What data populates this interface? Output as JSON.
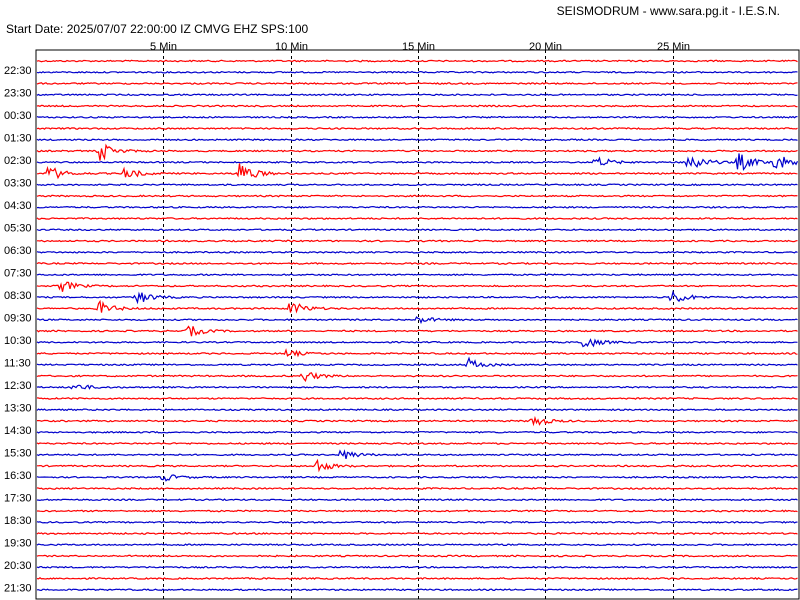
{
  "header": {
    "title": "SEISMODRUM - www.sara.pg.it - I.E.S.N.",
    "start_info": "Start Date: 2025/07/07 22:00:00 IZ CMVG EHZ SPS:100"
  },
  "chart_data": {
    "type": "line",
    "title": "SEISMODRUM - www.sara.pg.it - I.E.S.N.",
    "subtitle": "Start Date: 2025/07/07 22:00:00 IZ CMVG EHZ SPS:100",
    "xlabel": "",
    "ylabel": "",
    "x_unit": "min",
    "xlim": [
      0,
      30
    ],
    "x_ticks": [
      {
        "value": 5,
        "label": "5 Min"
      },
      {
        "value": 10,
        "label": "10 Min"
      },
      {
        "value": 15,
        "label": "15 Min"
      },
      {
        "value": 20,
        "label": "20 Min"
      },
      {
        "value": 25,
        "label": "25 Min"
      }
    ],
    "trace_colors": [
      "#ff0000",
      "#0000cc"
    ],
    "grid": {
      "minute_lines": "dashed"
    },
    "row_labels": [
      "22:30",
      "23:30",
      "00:30",
      "01:30",
      "02:30",
      "03:30",
      "04:30",
      "05:30",
      "06:30",
      "07:30",
      "08:30",
      "09:30",
      "10:30",
      "11:30",
      "12:30",
      "13:30",
      "14:30",
      "15:30",
      "16:30",
      "17:30",
      "18:30",
      "19:30",
      "20:30",
      "21:30"
    ],
    "rows_per_label": 2,
    "total_rows": 48,
    "events": [
      {
        "row": 8,
        "min": 2.5,
        "amp": 10
      },
      {
        "row": 9,
        "min": 25.6,
        "amp": 12
      },
      {
        "row": 9,
        "min": 22.0,
        "amp": 6
      },
      {
        "row": 9,
        "min": 27.6,
        "amp": 10
      },
      {
        "row": 9,
        "min": 29.0,
        "amp": 10
      },
      {
        "row": 10,
        "min": 0.5,
        "amp": 8
      },
      {
        "row": 10,
        "min": 3.5,
        "amp": 6
      },
      {
        "row": 10,
        "min": 8.0,
        "amp": 12
      },
      {
        "row": 20,
        "min": 1.0,
        "amp": 6
      },
      {
        "row": 21,
        "min": 4.0,
        "amp": 7
      },
      {
        "row": 21,
        "min": 25.0,
        "amp": 8
      },
      {
        "row": 22,
        "min": 2.5,
        "amp": 7
      },
      {
        "row": 22,
        "min": 10.0,
        "amp": 8
      },
      {
        "row": 23,
        "min": 15.0,
        "amp": 4
      },
      {
        "row": 24,
        "min": 6.0,
        "amp": 6
      },
      {
        "row": 25,
        "min": 21.5,
        "amp": 7
      },
      {
        "row": 26,
        "min": 9.8,
        "amp": 4
      },
      {
        "row": 27,
        "min": 17.0,
        "amp": 6
      },
      {
        "row": 28,
        "min": 10.5,
        "amp": 6
      },
      {
        "row": 29,
        "min": 1.5,
        "amp": 4
      },
      {
        "row": 32,
        "min": 19.5,
        "amp": 6
      },
      {
        "row": 35,
        "min": 12.0,
        "amp": 6
      },
      {
        "row": 36,
        "min": 11.0,
        "amp": 7
      },
      {
        "row": 37,
        "min": 5.0,
        "amp": 4
      }
    ]
  }
}
